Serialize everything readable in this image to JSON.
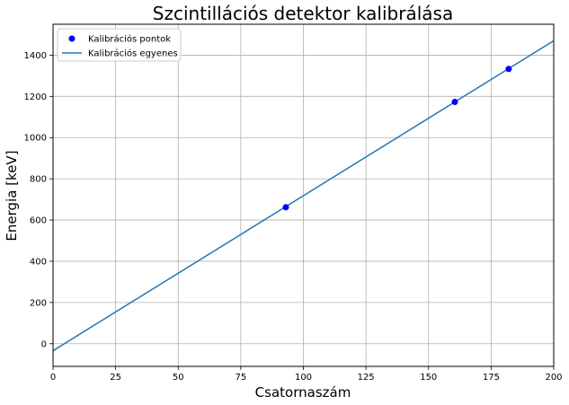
{
  "chart_data": {
    "type": "line",
    "title": "Szcintillációs detektor kalibrálása",
    "xlabel": "Csatornaszám",
    "ylabel": "Energia [keV]",
    "xlim": [
      0,
      200
    ],
    "ylim": [
      -110,
      1550
    ],
    "xticks": [
      0,
      25,
      50,
      75,
      100,
      125,
      150,
      175,
      200
    ],
    "yticks": [
      0,
      200,
      400,
      600,
      800,
      1000,
      1200,
      1400
    ],
    "grid": true,
    "legend_position": "top-left",
    "series": [
      {
        "name": "Kalibrációs pontok",
        "kind": "scatter",
        "color": "#0000ff",
        "x": [
          93,
          160.5,
          182
        ],
        "y": [
          662,
          1173,
          1333
        ]
      },
      {
        "name": "Kalibrációs egyenes",
        "kind": "line",
        "color": "#1f77b4",
        "x": [
          0,
          200
        ],
        "y": [
          -34,
          1470
        ]
      }
    ]
  }
}
